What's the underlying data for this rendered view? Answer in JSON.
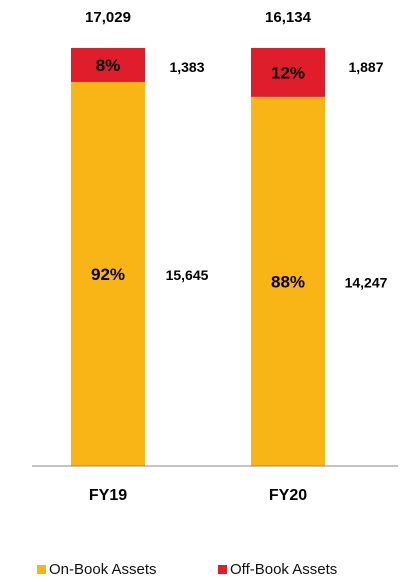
{
  "chart_data": {
    "type": "bar",
    "stacked": true,
    "categories": [
      "FY19",
      "FY20"
    ],
    "totals": [
      "17,029",
      "16,134"
    ],
    "series": [
      {
        "name": "On-Book Assets",
        "color": "#F9B415",
        "values": [
          15645,
          14247
        ],
        "value_labels": [
          "15,645",
          "14,247"
        ],
        "percent_labels": [
          "92%",
          "88%"
        ]
      },
      {
        "name": "Off-Book Assets",
        "color": "#E01E2B",
        "values": [
          1383,
          1887
        ],
        "value_labels": [
          "1,383",
          "1,887"
        ],
        "percent_labels": [
          "8%",
          "12%"
        ]
      }
    ],
    "legend_position": "bottom",
    "grid": false
  }
}
